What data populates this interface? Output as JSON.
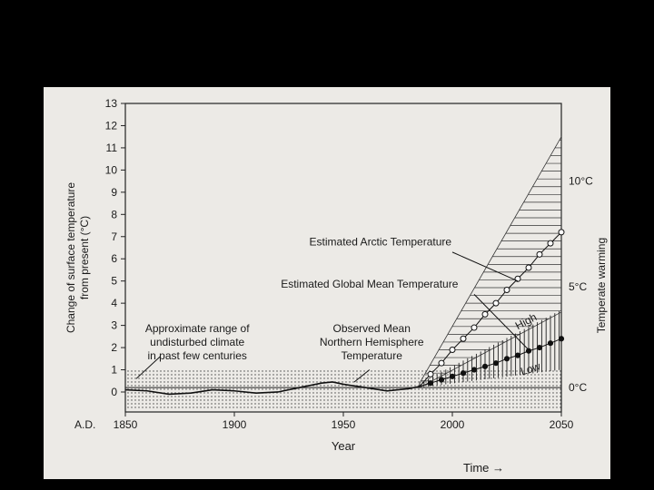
{
  "chart_data": {
    "type": "line",
    "xlabel": "Year",
    "time_label": "Time →",
    "ylabel": [
      "Change of surface temperature",
      "from present (°C)"
    ],
    "right_label": "Temperate warming",
    "ad_label": "A.D.",
    "xlim": [
      1850,
      2050
    ],
    "ylim": [
      -0.9,
      13
    ],
    "x_ticks": [
      1850,
      1900,
      1950,
      2000,
      2050
    ],
    "y_ticks": [
      0,
      1,
      2,
      3,
      4,
      5,
      6,
      7,
      8,
      9,
      10,
      11,
      12,
      13
    ],
    "right_ticks": [
      {
        "y": 9.5,
        "label": "10°C"
      },
      {
        "y": 4.75,
        "label": "5°C"
      },
      {
        "y": 0.2,
        "label": "0°C"
      }
    ],
    "undisturbed_range": [
      -0.8,
      1.0
    ],
    "annotations": {
      "undisturbed": [
        "Approximate range of",
        "undisturbed climate",
        "in past few centuries"
      ],
      "observed": [
        "Observed Mean",
        "Northern Hemisphere",
        "Temperature"
      ],
      "arctic": "Estimated Arctic Temperature",
      "global": "Estimated Global Mean Temperature",
      "high": "High",
      "low": "Low"
    },
    "series": [
      {
        "name": "Observed Mean Northern Hemisphere Temperature",
        "x": [
          1850,
          1860,
          1870,
          1880,
          1890,
          1900,
          1910,
          1920,
          1930,
          1940,
          1945,
          1950,
          1960,
          1970,
          1980,
          1985
        ],
        "values": [
          0.1,
          0.05,
          -0.1,
          -0.05,
          0.1,
          0.05,
          -0.05,
          0.0,
          0.2,
          0.4,
          0.45,
          0.35,
          0.2,
          0.05,
          0.15,
          0.25
        ]
      },
      {
        "name": "Estimated Arctic Temperature",
        "x": [
          1985,
          1990,
          1995,
          2000,
          2005,
          2010,
          2015,
          2020,
          2025,
          2030,
          2035,
          2040,
          2045,
          2050
        ],
        "values": [
          0.25,
          0.8,
          1.3,
          1.9,
          2.4,
          2.9,
          3.5,
          4.0,
          4.6,
          5.1,
          5.6,
          6.2,
          6.7,
          7.2
        ]
      },
      {
        "name": "Estimated Global Mean Temperature",
        "x": [
          1985,
          1990,
          1995,
          2000,
          2005,
          2010,
          2015,
          2020,
          2025,
          2030,
          2035,
          2040,
          2045,
          2050
        ],
        "values": [
          0.25,
          0.4,
          0.55,
          0.7,
          0.85,
          1.0,
          1.15,
          1.3,
          1.5,
          1.65,
          1.85,
          2.0,
          2.2,
          2.4
        ]
      }
    ],
    "arctic_band": {
      "x": [
        1985,
        2050
      ],
      "low": [
        0.2,
        3.6
      ],
      "high": [
        0.4,
        11.5
      ]
    },
    "global_band": {
      "x": [
        1985,
        2050
      ],
      "low": [
        0.2,
        1.0
      ],
      "high": [
        0.4,
        3.7
      ]
    }
  }
}
